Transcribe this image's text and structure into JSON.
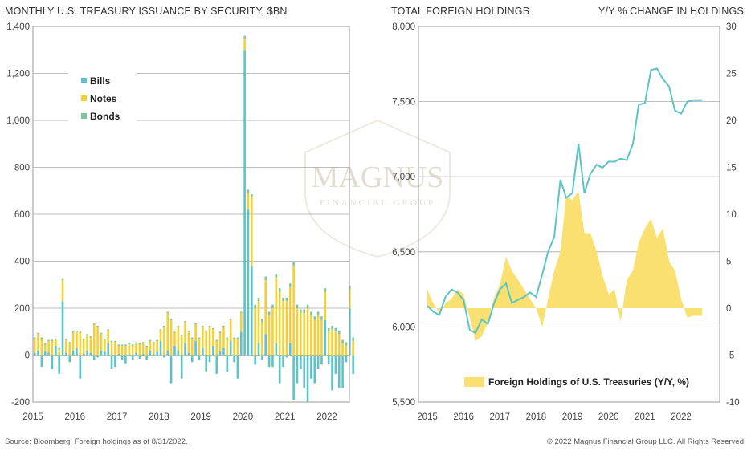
{
  "watermark": {
    "line1": "MAGNUS",
    "line2": "FINANCIAL GROUP"
  },
  "footer": {
    "source": "Source: Bloomberg. Foreign holdings as of 8/31/2022.",
    "copyright": "© 2022 Magnus Financial Group LLC. All Rights Reserved"
  },
  "colors": {
    "bills": "#5bc4c8",
    "notes": "#f5d033",
    "bonds": "#7cc89a",
    "line": "#5bc4c8",
    "area": "#f9e070",
    "grid": "#a8a8a8"
  },
  "chart_data": [
    {
      "type": "bar",
      "title": "MONTHLY U.S. TREASURY ISSUANCE BY SECURITY, $BN",
      "xlabel": "",
      "ylabel": "",
      "ylim": [
        -200,
        1400
      ],
      "yticks": [
        "-200",
        "0",
        "200",
        "400",
        "600",
        "800",
        "1,000",
        "1,200",
        "1,400"
      ],
      "xticks": [
        "2015",
        "2016",
        "2017",
        "2018",
        "2019",
        "2020",
        "2021",
        "2022"
      ],
      "legend": {
        "placement": "top-left"
      },
      "grid": true,
      "stacked": true,
      "months": [
        "2015-01",
        "2015-02",
        "2015-03",
        "2015-04",
        "2015-05",
        "2015-06",
        "2015-07",
        "2015-08",
        "2015-09",
        "2015-10",
        "2015-11",
        "2015-12",
        "2016-01",
        "2016-02",
        "2016-03",
        "2016-04",
        "2016-05",
        "2016-06",
        "2016-07",
        "2016-08",
        "2016-09",
        "2016-10",
        "2016-11",
        "2016-12",
        "2017-01",
        "2017-02",
        "2017-03",
        "2017-04",
        "2017-05",
        "2017-06",
        "2017-07",
        "2017-08",
        "2017-09",
        "2017-10",
        "2017-11",
        "2017-12",
        "2018-01",
        "2018-02",
        "2018-03",
        "2018-04",
        "2018-05",
        "2018-06",
        "2018-07",
        "2018-08",
        "2018-09",
        "2018-10",
        "2018-11",
        "2018-12",
        "2019-01",
        "2019-02",
        "2019-03",
        "2019-04",
        "2019-05",
        "2019-06",
        "2019-07",
        "2019-08",
        "2019-09",
        "2019-10",
        "2019-11",
        "2019-12",
        "2020-01",
        "2020-02",
        "2020-03",
        "2020-04",
        "2020-05",
        "2020-06",
        "2020-07",
        "2020-08",
        "2020-09",
        "2020-10",
        "2020-11",
        "2020-12",
        "2021-01",
        "2021-02",
        "2021-03",
        "2021-04",
        "2021-05",
        "2021-06",
        "2021-07",
        "2021-08",
        "2021-09",
        "2021-10",
        "2021-11",
        "2021-12",
        "2022-01",
        "2022-02",
        "2022-03",
        "2022-04",
        "2022-05",
        "2022-06",
        "2022-07",
        "2022-08"
      ],
      "series": [
        {
          "name": "Bills",
          "values": [
            10,
            20,
            -50,
            15,
            10,
            -60,
            40,
            -80,
            230,
            10,
            -30,
            20,
            30,
            -100,
            5,
            20,
            10,
            -20,
            -10,
            20,
            15,
            50,
            -60,
            -50,
            5,
            -20,
            -35,
            5,
            -20,
            10,
            -15,
            5,
            -20,
            20,
            5,
            15,
            60,
            -10,
            20,
            -120,
            40,
            20,
            -100,
            50,
            10,
            -30,
            60,
            -20,
            30,
            -70,
            -30,
            40,
            -80,
            15,
            30,
            -70,
            60,
            -30,
            -100,
            100,
            1300,
            620,
            380,
            -40,
            50,
            -20,
            90,
            -50,
            -50,
            50,
            -120,
            -50,
            -10,
            50,
            -190,
            -120,
            -60,
            -140,
            -200,
            -100,
            -120,
            -60,
            -40,
            150,
            -40,
            -150,
            -80,
            -140,
            -140,
            -30,
            200,
            -80
          ]
        },
        {
          "name": "Notes",
          "values": [
            60,
            70,
            70,
            30,
            50,
            60,
            25,
            25,
            90,
            55,
            50,
            75,
            70,
            95,
            60,
            65,
            65,
            130,
            120,
            70,
            50,
            55,
            55,
            55,
            35,
            40,
            40,
            40,
            40,
            40,
            45,
            45,
            35,
            40,
            45,
            45,
            45,
            120,
            160,
            150,
            60,
            100,
            80,
            90,
            90,
            70,
            70,
            70,
            90,
            100,
            120,
            70,
            60,
            80,
            90,
            70,
            90,
            70,
            70,
            80,
            50,
            70,
            290,
            200,
            180,
            140,
            230,
            170,
            200,
            280,
            270,
            230,
            230,
            240,
            380,
            200,
            180,
            180,
            200,
            170,
            150,
            170,
            150,
            120,
            100,
            110,
            100,
            90,
            50,
            40,
            80,
            60
          ]
        },
        {
          "name": "Bonds",
          "values": [
            5,
            5,
            5,
            5,
            5,
            5,
            5,
            5,
            5,
            5,
            5,
            5,
            5,
            5,
            5,
            5,
            5,
            5,
            5,
            5,
            5,
            5,
            5,
            5,
            5,
            5,
            5,
            5,
            5,
            5,
            5,
            5,
            5,
            5,
            5,
            5,
            5,
            5,
            5,
            5,
            5,
            5,
            5,
            5,
            5,
            5,
            5,
            5,
            5,
            5,
            5,
            5,
            5,
            5,
            5,
            5,
            5,
            5,
            5,
            5,
            10,
            15,
            15,
            15,
            15,
            15,
            15,
            15,
            15,
            15,
            15,
            15,
            15,
            15,
            15,
            15,
            15,
            15,
            15,
            15,
            15,
            15,
            15,
            15,
            15,
            15,
            15,
            15,
            15,
            15,
            15,
            15
          ]
        }
      ]
    },
    {
      "type": "area",
      "title_left": "TOTAL FOREIGN HOLDINGS",
      "title_right": "Y/Y % CHANGE IN HOLDINGS",
      "legend": {
        "label": "Foreign Holdings of U.S. Treasuries (Y/Y, %)",
        "placement": "bottom-center"
      },
      "grid": true,
      "xticks": [
        "2015",
        "2016",
        "2017",
        "2018",
        "2019",
        "2020",
        "2021",
        "2022"
      ],
      "yticks_left": [
        "5,500",
        "6,000",
        "6,500",
        "7,000",
        "7,500",
        "8,000"
      ],
      "yticks_right": [
        "-10",
        "-5",
        "0",
        "5",
        "10",
        "15",
        "20",
        "25",
        "30"
      ],
      "ylim_left": [
        5500,
        8000
      ],
      "ylim_right": [
        -10,
        30
      ],
      "x": [
        2015.0,
        2015.17,
        2015.33,
        2015.5,
        2015.67,
        2015.83,
        2016.0,
        2016.17,
        2016.33,
        2016.5,
        2016.67,
        2016.83,
        2017.0,
        2017.17,
        2017.33,
        2017.5,
        2017.67,
        2017.83,
        2018.0,
        2018.17,
        2018.33,
        2018.5,
        2018.67,
        2018.83,
        2019.0,
        2019.17,
        2019.33,
        2019.5,
        2019.67,
        2019.83,
        2020.0,
        2020.17,
        2020.33,
        2020.5,
        2020.67,
        2020.83,
        2021.0,
        2021.17,
        2021.33,
        2021.5,
        2021.67,
        2021.83,
        2022.0,
        2022.17,
        2022.33,
        2022.5,
        2022.58
      ],
      "series": [
        {
          "name": "Total Foreign Holdings",
          "axis": "left",
          "values": [
            6140,
            6100,
            6080,
            6200,
            6250,
            6230,
            6180,
            5980,
            5960,
            6050,
            6020,
            6150,
            6250,
            6290,
            6160,
            6180,
            6200,
            6230,
            6200,
            6350,
            6500,
            6600,
            6980,
            6860,
            6890,
            7220,
            6890,
            7020,
            7080,
            7060,
            7100,
            7100,
            7120,
            7110,
            7220,
            7480,
            7490,
            7710,
            7720,
            7650,
            7600,
            7440,
            7420,
            7500,
            7510,
            7510,
            7510
          ]
        },
        {
          "name": "Foreign Holdings of U.S. Treasuries (Y/Y, %)",
          "axis": "right",
          "values": [
            2,
            0.5,
            -0.5,
            0.5,
            1,
            2,
            1.5,
            -1,
            -3.5,
            -3,
            -1.5,
            1,
            2.5,
            5.5,
            4,
            3,
            2,
            1,
            0,
            -2,
            1,
            4,
            6,
            12,
            11.5,
            12.5,
            8,
            8,
            6,
            3.5,
            1.5,
            2,
            -1.5,
            3,
            4,
            7,
            8.5,
            9.5,
            7.5,
            8.5,
            5,
            4,
            1,
            -1,
            -0.8,
            -0.8,
            -0.8
          ]
        }
      ]
    }
  ]
}
